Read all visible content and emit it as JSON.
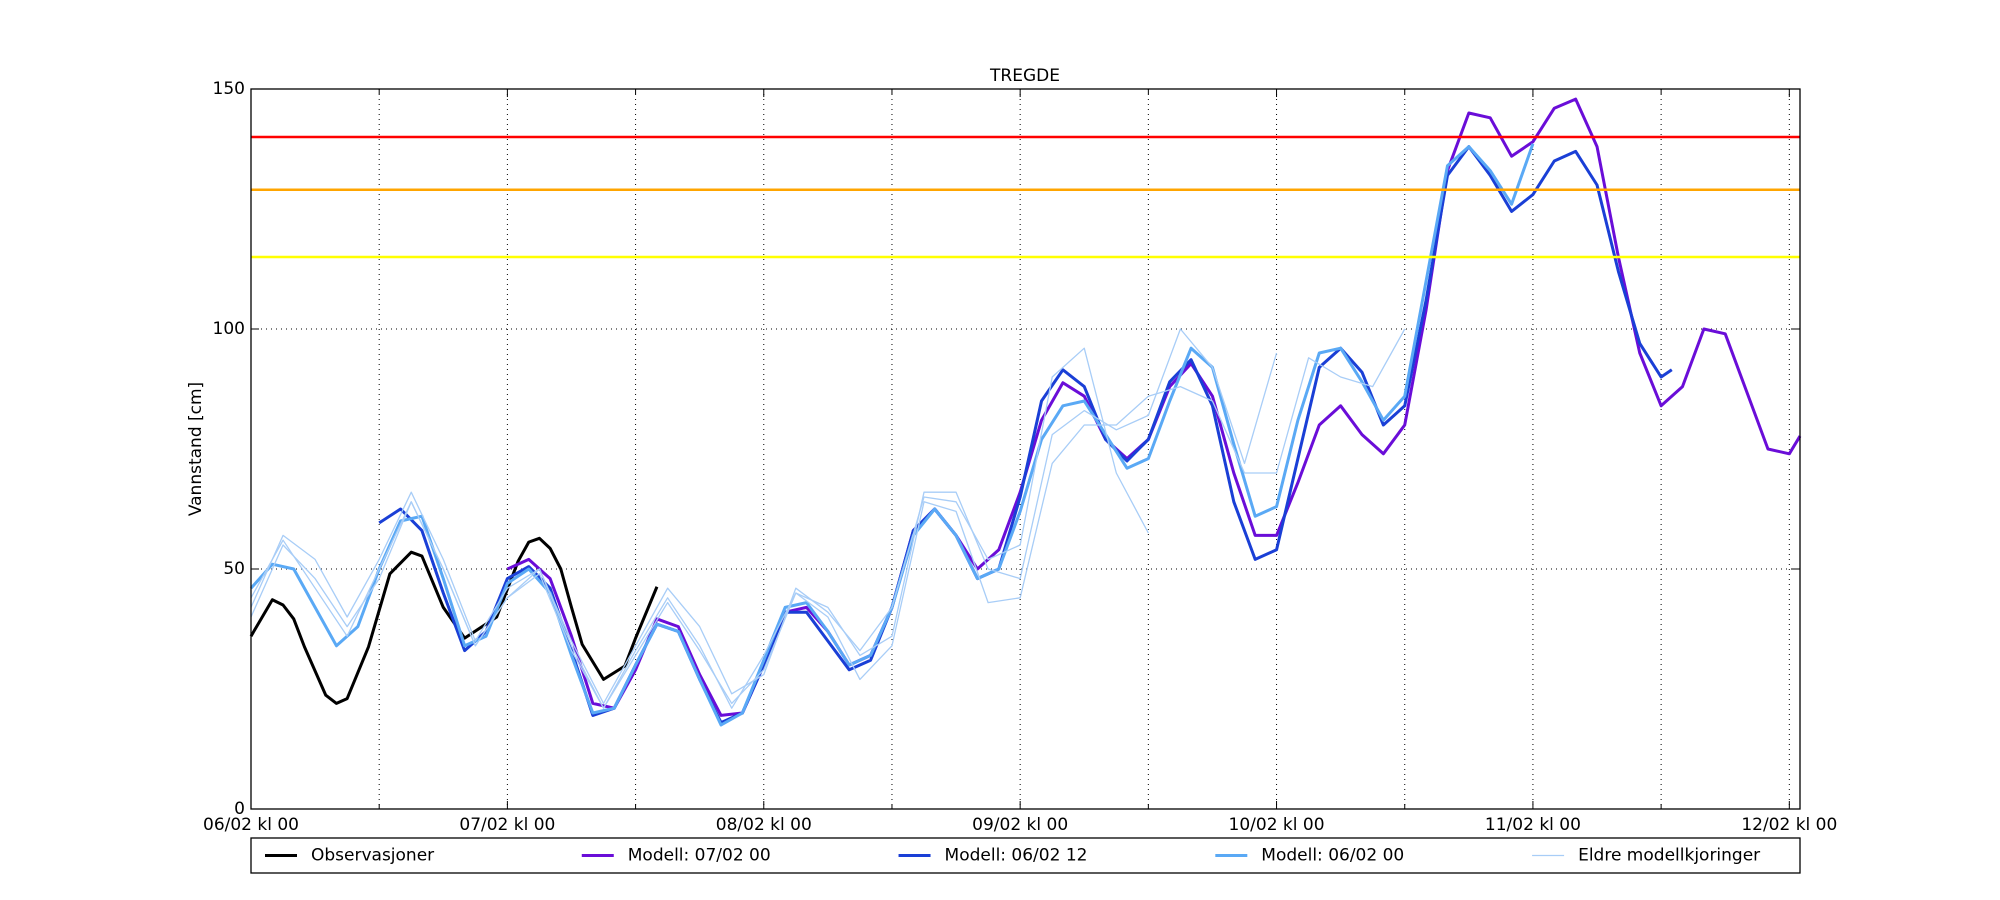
{
  "chart_data": {
    "type": "line",
    "title": "TREGDE",
    "y_label": "Vannstand [cm]",
    "xlim": [
      0,
      145
    ],
    "ylim": [
      0,
      150
    ],
    "xticks": [
      {
        "value": 0,
        "label": "06/02 kl 00"
      },
      {
        "value": 24,
        "label": "07/02 kl 00"
      },
      {
        "value": 48,
        "label": "08/02 kl 00"
      },
      {
        "value": 72,
        "label": "09/02 kl 00"
      },
      {
        "value": 96,
        "label": "10/02 kl 00"
      },
      {
        "value": 120,
        "label": "11/02 kl 00"
      },
      {
        "value": 144,
        "label": "12/02 kl 00"
      }
    ],
    "xminor_ticks": [
      12,
      36,
      60,
      84,
      108,
      132
    ],
    "yticks": [
      0,
      50,
      100,
      150
    ],
    "grid": true,
    "hlines": [
      {
        "value": 140,
        "color": "#ff0000"
      },
      {
        "value": 129,
        "color": "#ffa500"
      },
      {
        "value": 115,
        "color": "#ffff00"
      }
    ],
    "series": [
      {
        "name": "Observasjoner",
        "color": "#000000",
        "width": 3,
        "lines": [
          {
            "x": [
              0,
              2,
              3,
              4,
              5,
              7,
              8,
              9,
              11,
              13,
              15,
              16,
              18,
              20,
              23,
              25,
              26,
              27,
              28,
              29,
              30,
              31,
              33,
              35,
              36,
              38
            ],
            "values": [
              36,
              43.6,
              42.5,
              39.6,
              33.8,
              23.7,
              22,
              23,
              33.8,
              49,
              53.5,
              52.7,
              42,
              35.6,
              40,
              51.6,
              55.6,
              56.4,
              54.3,
              50,
              42,
              34.3,
              27,
              29.8,
              35.6,
              46.3
            ]
          }
        ]
      },
      {
        "name": "Modell: 07/02 00",
        "color": "#6a0dd8",
        "width": 3,
        "lines": [
          {
            "x": [
              24,
              26,
              28,
              30,
              32,
              34,
              36,
              38,
              40,
              42,
              44,
              46,
              48,
              50,
              52,
              54,
              56,
              58,
              60,
              62,
              64,
              66,
              68,
              70,
              72,
              74,
              76,
              78,
              80,
              82,
              84,
              86,
              88,
              90,
              92,
              94,
              96,
              98,
              100,
              102,
              104,
              106,
              108,
              110,
              112,
              114,
              116,
              118,
              120,
              122,
              124,
              126,
              128,
              130,
              132,
              134,
              136,
              138,
              140,
              142,
              144,
              145
            ],
            "values": [
              50,
              52,
              48,
              36,
              22,
              21,
              29,
              39.6,
              38,
              28,
              19.5,
              20,
              30,
              41,
              42,
              37,
              30,
              32,
              42,
              58,
              62.5,
              57,
              50,
              54,
              66,
              81,
              88.8,
              86,
              77,
              73,
              77,
              88,
              92.8,
              86,
              70,
              57,
              57,
              68,
              80,
              84,
              78,
              74,
              80,
              104,
              133,
              145,
              144,
              136,
              139,
              146,
              147.9,
              138,
              115,
              95,
              84,
              88,
              100,
              99,
              87,
              75,
              74,
              77.7
            ]
          }
        ]
      },
      {
        "name": "Modell: 06/02 12",
        "color": "#1a3fd6",
        "width": 3,
        "lines": [
          {
            "x": [
              12,
              14,
              16,
              18,
              20,
              22,
              24,
              26,
              28,
              30,
              32,
              34,
              36,
              38,
              40,
              42,
              44,
              46,
              48,
              50,
              52,
              54,
              56,
              58,
              60,
              62,
              64,
              66,
              68,
              70,
              72,
              74,
              76,
              78,
              80,
              82,
              84,
              86,
              88,
              90,
              92,
              94,
              96,
              98,
              100,
              102,
              104,
              106,
              108,
              110,
              112,
              114,
              116,
              118,
              120,
              122,
              124,
              126,
              128,
              130,
              132,
              133
            ],
            "values": [
              59.6,
              62.5,
              58,
              45,
              33,
              37,
              48,
              50.5,
              46,
              33,
              19.5,
              21,
              30,
              38.5,
              37,
              27,
              18,
              20,
              30,
              41,
              41,
              35,
              29,
              31,
              42,
              58,
              62.5,
              57,
              48,
              50,
              65,
              85,
              91.5,
              88,
              77,
              72.5,
              77,
              89,
              93.6,
              84,
              64,
              52,
              54,
              73,
              92,
              96,
              91,
              80,
              84,
              106,
              132,
              138,
              132,
              124.5,
              128,
              135,
              137,
              130,
              112,
              97,
              90,
              91.5
            ]
          }
        ]
      },
      {
        "name": "Modell: 06/02 00",
        "color": "#5aa9f5",
        "width": 3,
        "lines": [
          {
            "x": [
              0,
              2,
              4,
              6,
              8,
              10,
              12,
              14,
              16,
              18,
              20,
              22,
              24,
              26,
              28,
              30,
              32,
              34,
              36,
              38,
              40,
              42,
              44,
              46,
              48,
              50,
              52,
              54,
              56,
              58,
              60,
              62,
              64,
              66,
              68,
              70,
              72,
              74,
              76,
              78,
              80,
              82,
              84,
              86,
              88,
              90,
              92,
              94,
              96,
              98,
              100,
              102,
              104,
              106,
              108,
              110,
              112,
              114,
              116,
              118,
              120
            ],
            "values": [
              46,
              51,
              50,
              42,
              34,
              38,
              50,
              60,
              61,
              48,
              34,
              36,
              47,
              50,
              45,
              32,
              20,
              21,
              30,
              38.5,
              37,
              27,
              17.5,
              20,
              31,
              42,
              43,
              37,
              30,
              32,
              42,
              57,
              62.5,
              57,
              48,
              50,
              62,
              77,
              84,
              85,
              78,
              71,
              73,
              85,
              96,
              92,
              76,
              61,
              63,
              81,
              95,
              96,
              89,
              81,
              86,
              110,
              134,
              138,
              133,
              126,
              138.6
            ]
          }
        ]
      },
      {
        "name": "Eldre modellkjoringer",
        "color": "#a8cdf7",
        "width": 1.3,
        "lines": [
          {
            "x": [
              0,
              3,
              6,
              9,
              12,
              15,
              18,
              21,
              24,
              27,
              30,
              33,
              36,
              39,
              42,
              45,
              48,
              51,
              54,
              57,
              60,
              63,
              66,
              69,
              72,
              75,
              78,
              81,
              84
            ],
            "values": [
              42,
              57,
              52,
              40,
              52,
              66,
              52,
              35,
              46,
              50,
              35,
              22,
              34,
              46,
              38,
              24,
              28,
              46,
              41,
              33,
              42,
              65,
              64,
              52,
              55,
              90,
              96,
              70,
              57.5
            ]
          },
          {
            "x": [
              0,
              3,
              6,
              9,
              12,
              15,
              18,
              21,
              24,
              27,
              30,
              33,
              36,
              39,
              42,
              45,
              48,
              51,
              54,
              57,
              60,
              63,
              66,
              69,
              72,
              75,
              78,
              81,
              84,
              87,
              90,
              93,
              96
            ],
            "values": [
              40,
              55,
              48,
              38,
              48,
              64,
              50,
              34,
              44,
              49,
              33,
              21,
              32,
              43,
              33,
              22,
              29,
              45,
              42,
              32,
              36,
              66,
              66,
              50,
              48,
              78,
              83,
              79,
              82,
              100,
              92,
              72,
              95
            ]
          },
          {
            "x": [
              0,
              3,
              6,
              9,
              12,
              15,
              18,
              21,
              24,
              27,
              30,
              33,
              36,
              39,
              42,
              45,
              48,
              51,
              54,
              57,
              60,
              63,
              66,
              69,
              72,
              75,
              78,
              81,
              84,
              87,
              90,
              93,
              96,
              99,
              102,
              105,
              108
            ],
            "values": [
              44,
              56,
              46,
              36,
              50,
              64,
              50,
              34,
              44,
              50,
              34,
              21,
              33,
              44,
              34,
              21,
              32,
              45,
              40,
              27,
              34,
              64,
              62,
              43,
              44,
              72,
              80,
              80,
              86,
              88,
              85,
              70,
              70,
              94,
              90,
              88,
              100
            ]
          }
        ]
      }
    ]
  }
}
